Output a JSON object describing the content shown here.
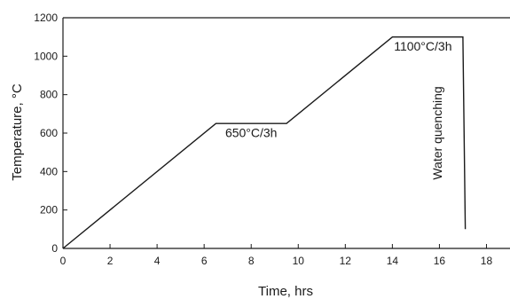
{
  "chart_data": {
    "type": "line",
    "xlabel": "Time, hrs",
    "ylabel": "Temperature, °C",
    "xlim": [
      0,
      19
    ],
    "ylim": [
      0,
      1200
    ],
    "x_ticks": [
      0,
      2,
      4,
      6,
      8,
      10,
      12,
      14,
      16,
      18
    ],
    "y_ticks": [
      0,
      200,
      400,
      600,
      800,
      1000,
      1200
    ],
    "grid": false,
    "series": [
      {
        "x": [
          0,
          6.5,
          9.5,
          14,
          17,
          17.1
        ],
        "y": [
          0,
          650,
          650,
          1100,
          1100,
          100
        ]
      }
    ],
    "annotations": [
      {
        "text": "650°C/3h",
        "x": 8,
        "y": 580
      },
      {
        "text": "1100°C/3h",
        "x": 15.3,
        "y": 1030
      },
      {
        "text": "Water quenching",
        "x": 16.1,
        "y": 600,
        "rotation": -90
      }
    ],
    "colors": {
      "line": "#1a1a1a",
      "axis": "#1a1a1a"
    }
  }
}
